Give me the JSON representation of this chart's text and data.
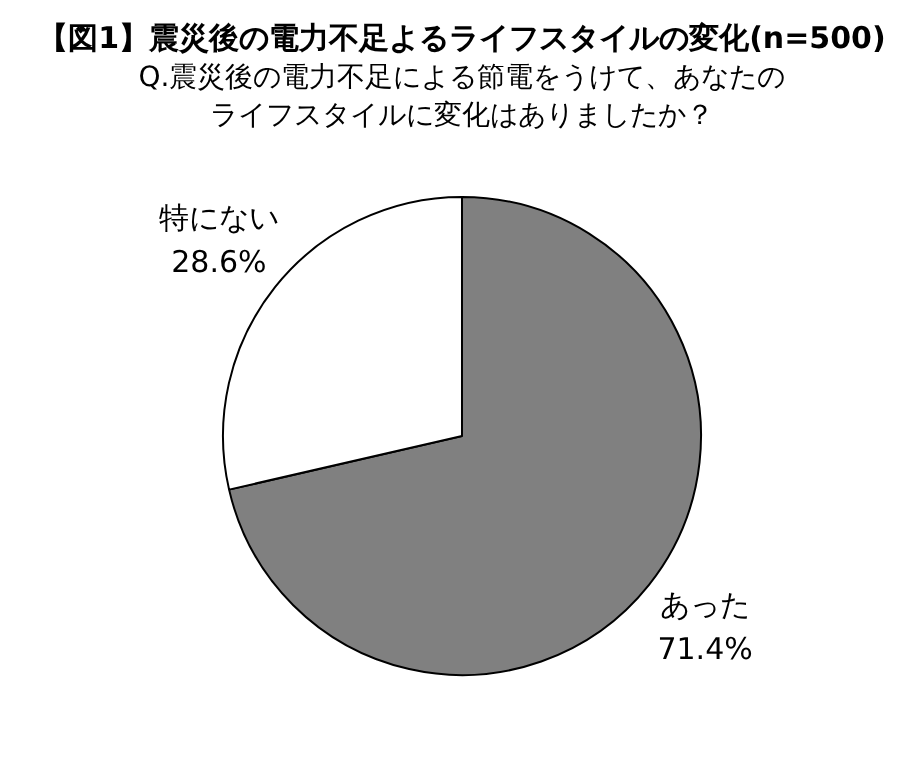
{
  "chart_data": {
    "type": "pie",
    "title": "【図1】震災後の電力不足よるライフスタイルの変化(n=500)",
    "subtitle": "Q.震災後の電力不足による節電をうけて、あなたのライフスタイルに変化はありましたか？",
    "categories": [
      "あった",
      "特にない"
    ],
    "values": [
      71.4,
      28.6
    ],
    "colors": [
      "#808080",
      "#ffffff"
    ],
    "value_labels": [
      "71.4%",
      "28.6%"
    ]
  }
}
